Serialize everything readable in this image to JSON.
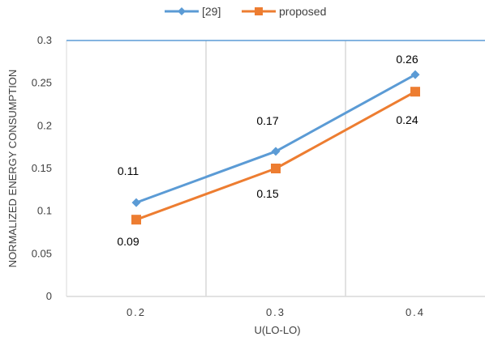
{
  "chart_data": {
    "type": "line",
    "categories": [
      "0.2",
      "0.3",
      "0.4"
    ],
    "series": [
      {
        "name": "[29]",
        "values": [
          0.11,
          0.17,
          0.26
        ],
        "color": "#5B9BD5",
        "marker": "diamond",
        "labels": [
          "0.11",
          "0.17",
          "0.26"
        ]
      },
      {
        "name": "proposed",
        "values": [
          0.09,
          0.15,
          0.24
        ],
        "color": "#ED7D31",
        "marker": "square",
        "labels": [
          "0.09",
          "0.15",
          "0.24"
        ]
      }
    ],
    "xlabel": "U(LO-LO)",
    "ylabel": "NORMALIZED ENERGY CONSUMPTION",
    "ylim": [
      0,
      0.3
    ],
    "yticks": [
      "0",
      "0.05",
      "0.1",
      "0.15",
      "0.2",
      "0.25",
      "0.3"
    ],
    "legend_position": "top",
    "grid": "vertical",
    "top_line_color": "#5B9BD5"
  }
}
